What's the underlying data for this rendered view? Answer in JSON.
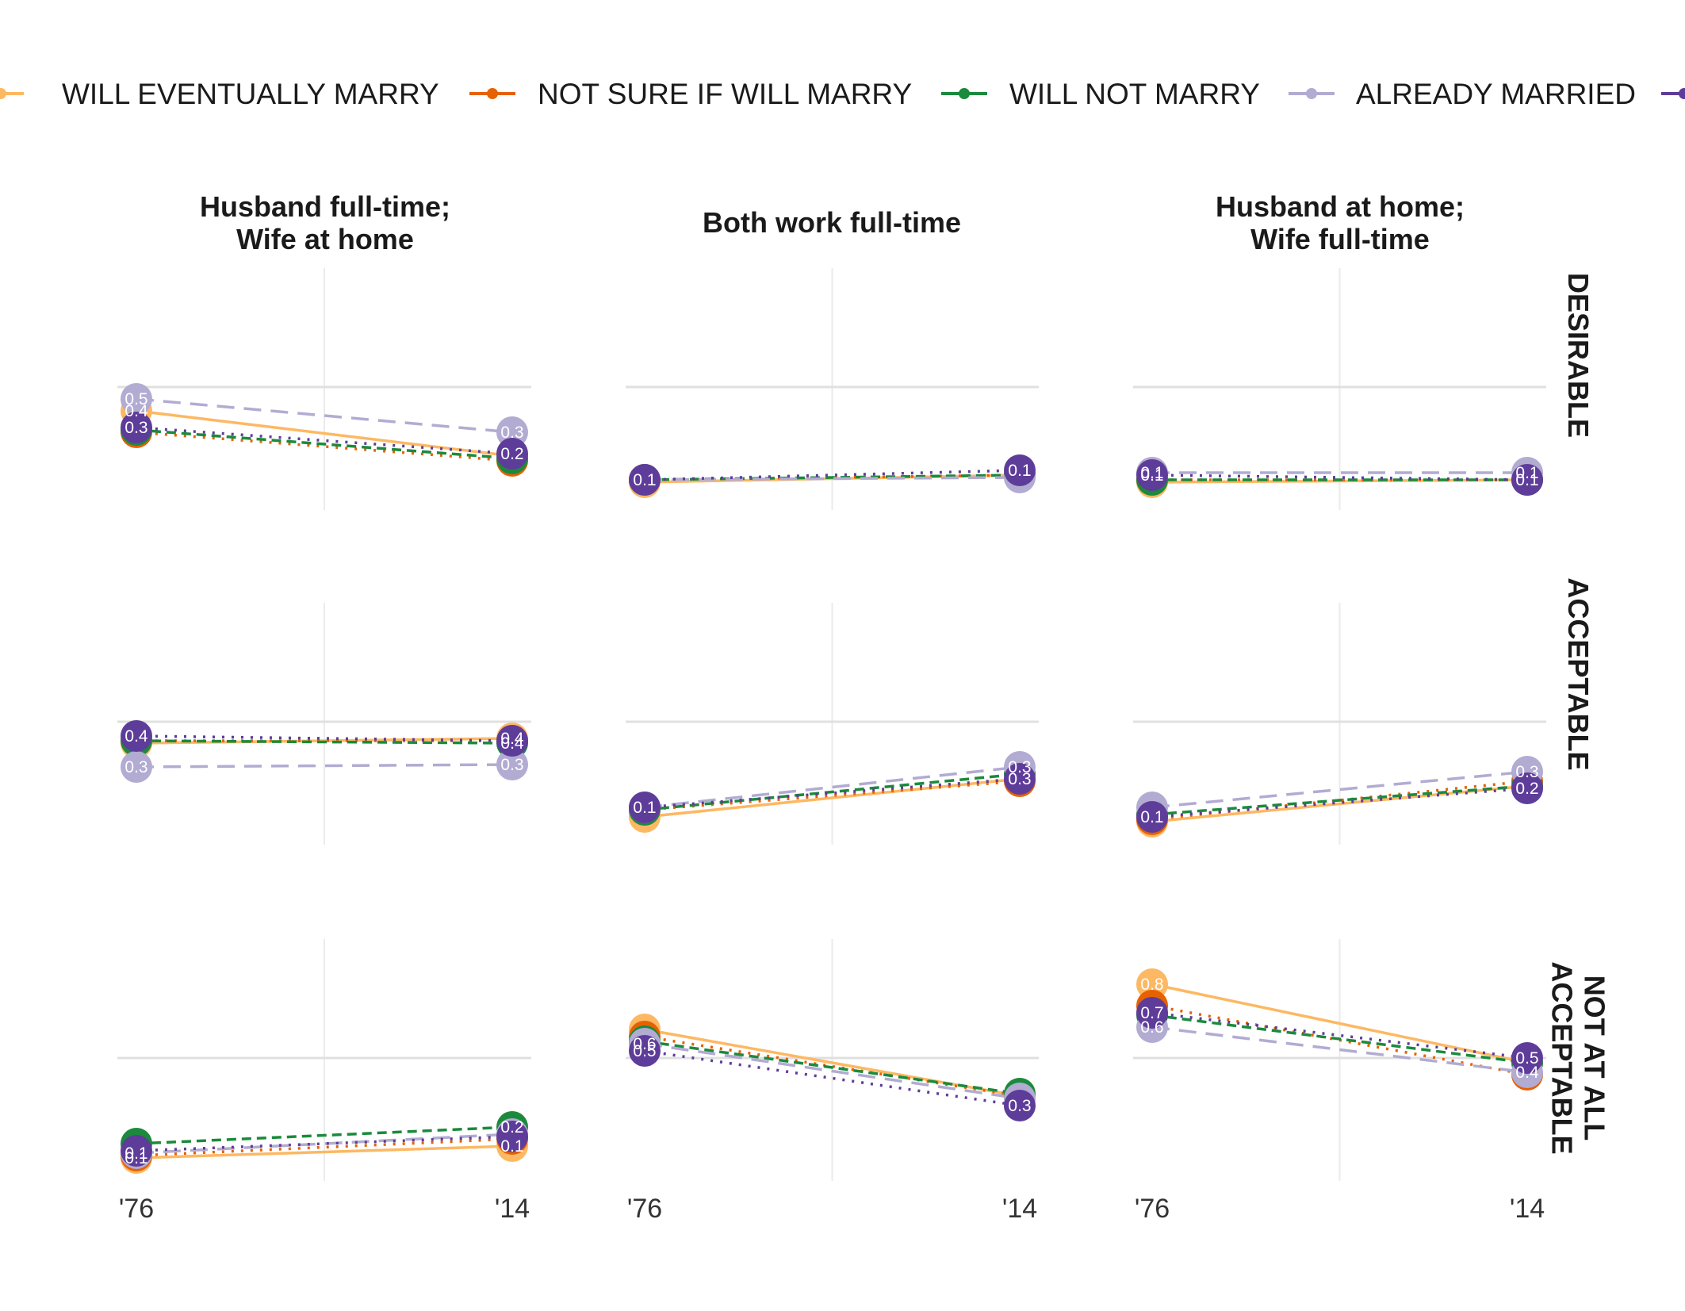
{
  "chart_data": {
    "type": "line",
    "x": [
      "'76",
      "'14"
    ],
    "columns": [
      "Husband full-time;\nWife at home",
      "Both work full-time",
      "Husband at home;\nWife full-time"
    ],
    "rows": [
      "DESIRABLE",
      "ACCEPTABLE",
      "NOT AT ALL\nACCEPTABLE"
    ],
    "series": [
      {
        "name": "WILL EVENTUALLY MARRY",
        "color": "#fdb863",
        "dash": "solid"
      },
      {
        "name": "NOT SURE IF WILL MARRY",
        "color": "#e66101",
        "dash": "dotted"
      },
      {
        "name": "WILL NOT MARRY",
        "color": "#1b8a3c",
        "dash": "dashed"
      },
      {
        "name": "ALREADY MARRIED",
        "color": "#b2abd2",
        "dash": "longdash"
      },
      {
        "name": "",
        "color": "#5e3c99",
        "dash": "dotted"
      }
    ],
    "panels": [
      {
        "col": 0,
        "row": 0,
        "values": [
          [
            0.4,
            0.21
          ],
          [
            0.31,
            0.19
          ],
          [
            0.32,
            0.2
          ],
          [
            0.45,
            0.31
          ],
          [
            0.33,
            0.22
          ]
        ],
        "labels": [
          {
            "series": 3,
            "xi": 0,
            "text": "0.5"
          },
          {
            "series": 0,
            "xi": 0,
            "text": "0.4"
          },
          {
            "series": 4,
            "xi": 0,
            "text": "0.3"
          },
          {
            "series": 3,
            "xi": 1,
            "text": "0.3"
          },
          {
            "series": 4,
            "xi": 1,
            "text": "0.2"
          }
        ]
      },
      {
        "col": 1,
        "row": 0,
        "values": [
          [
            0.1,
            0.13
          ],
          [
            0.11,
            0.13
          ],
          [
            0.11,
            0.13
          ],
          [
            0.11,
            0.12
          ],
          [
            0.11,
            0.15
          ]
        ],
        "labels": [
          {
            "series": 4,
            "xi": 0,
            "text": "0.1"
          },
          {
            "series": 4,
            "xi": 1,
            "text": "0.1"
          }
        ]
      },
      {
        "col": 2,
        "row": 0,
        "values": [
          [
            0.1,
            0.11
          ],
          [
            0.11,
            0.11
          ],
          [
            0.11,
            0.11
          ],
          [
            0.14,
            0.14
          ],
          [
            0.13,
            0.11
          ]
        ],
        "labels": [
          {
            "series": 3,
            "xi": 0,
            "text": "0.1"
          },
          {
            "series": 4,
            "xi": 0,
            "text": "0.1"
          },
          {
            "series": 3,
            "xi": 1,
            "text": "0.1"
          },
          {
            "series": 4,
            "xi": 1,
            "text": "0.1"
          }
        ]
      },
      {
        "col": 0,
        "row": 1,
        "values": [
          [
            0.41,
            0.43
          ],
          [
            0.42,
            0.42
          ],
          [
            0.42,
            0.41
          ],
          [
            0.31,
            0.32
          ],
          [
            0.44,
            0.42
          ]
        ],
        "labels": [
          {
            "series": 4,
            "xi": 0,
            "text": "0.4"
          },
          {
            "series": 3,
            "xi": 0,
            "text": "0.3"
          },
          {
            "series": 0,
            "xi": 1,
            "text": "0.4"
          },
          {
            "series": 2,
            "xi": 1,
            "text": "0.4"
          },
          {
            "series": 3,
            "xi": 1,
            "text": "0.3"
          }
        ]
      },
      {
        "col": 1,
        "row": 1,
        "values": [
          [
            0.1,
            0.26
          ],
          [
            0.13,
            0.25
          ],
          [
            0.13,
            0.28
          ],
          [
            0.14,
            0.31
          ],
          [
            0.14,
            0.26
          ]
        ],
        "labels": [
          {
            "series": 4,
            "xi": 0,
            "text": "0.1"
          },
          {
            "series": 3,
            "xi": 1,
            "text": "0.3"
          },
          {
            "series": 4,
            "xi": 1,
            "text": "0.3"
          }
        ]
      },
      {
        "col": 2,
        "row": 1,
        "values": [
          [
            0.08,
            0.23
          ],
          [
            0.09,
            0.25
          ],
          [
            0.11,
            0.23
          ],
          [
            0.14,
            0.29
          ],
          [
            0.1,
            0.22
          ]
        ],
        "labels": [
          {
            "series": 4,
            "xi": 0,
            "text": "0.1"
          },
          {
            "series": 3,
            "xi": 1,
            "text": "0.3"
          },
          {
            "series": 4,
            "xi": 1,
            "text": "0.2"
          }
        ]
      },
      {
        "col": 0,
        "row": 2,
        "values": [
          [
            0.08,
            0.13
          ],
          [
            0.09,
            0.16
          ],
          [
            0.14,
            0.21
          ],
          [
            0.1,
            0.18
          ],
          [
            0.11,
            0.17
          ]
        ],
        "labels": [
          {
            "series": 3,
            "xi": 0,
            "text": "0.1"
          },
          {
            "series": 0,
            "xi": 0,
            "text": "0.1"
          },
          {
            "series": 2,
            "xi": 1,
            "text": "0.2"
          },
          {
            "series": 0,
            "xi": 1,
            "text": "0.1"
          }
        ]
      },
      {
        "col": 1,
        "row": 2,
        "values": [
          [
            0.62,
            0.34
          ],
          [
            0.59,
            0.34
          ],
          [
            0.57,
            0.35
          ],
          [
            0.56,
            0.33
          ],
          [
            0.53,
            0.3
          ]
        ],
        "labels": [
          {
            "series": 3,
            "xi": 0,
            "text": "0.6"
          },
          {
            "series": 4,
            "xi": 0,
            "text": "0.5"
          },
          {
            "series": 4,
            "xi": 1,
            "text": "0.3"
          }
        ]
      },
      {
        "col": 2,
        "row": 2,
        "values": [
          [
            0.81,
            0.48
          ],
          [
            0.72,
            0.43
          ],
          [
            0.68,
            0.48
          ],
          [
            0.63,
            0.44
          ],
          [
            0.69,
            0.5
          ]
        ],
        "labels": [
          {
            "series": 0,
            "xi": 0,
            "text": "0.8"
          },
          {
            "series": 4,
            "xi": 0,
            "text": "0.7"
          },
          {
            "series": 3,
            "xi": 0,
            "text": "0.6"
          },
          {
            "series": 4,
            "xi": 1,
            "text": "0.5"
          },
          {
            "series": 3,
            "xi": 1,
            "text": "0.4"
          }
        ]
      }
    ],
    "legend": "top",
    "grid": true
  }
}
